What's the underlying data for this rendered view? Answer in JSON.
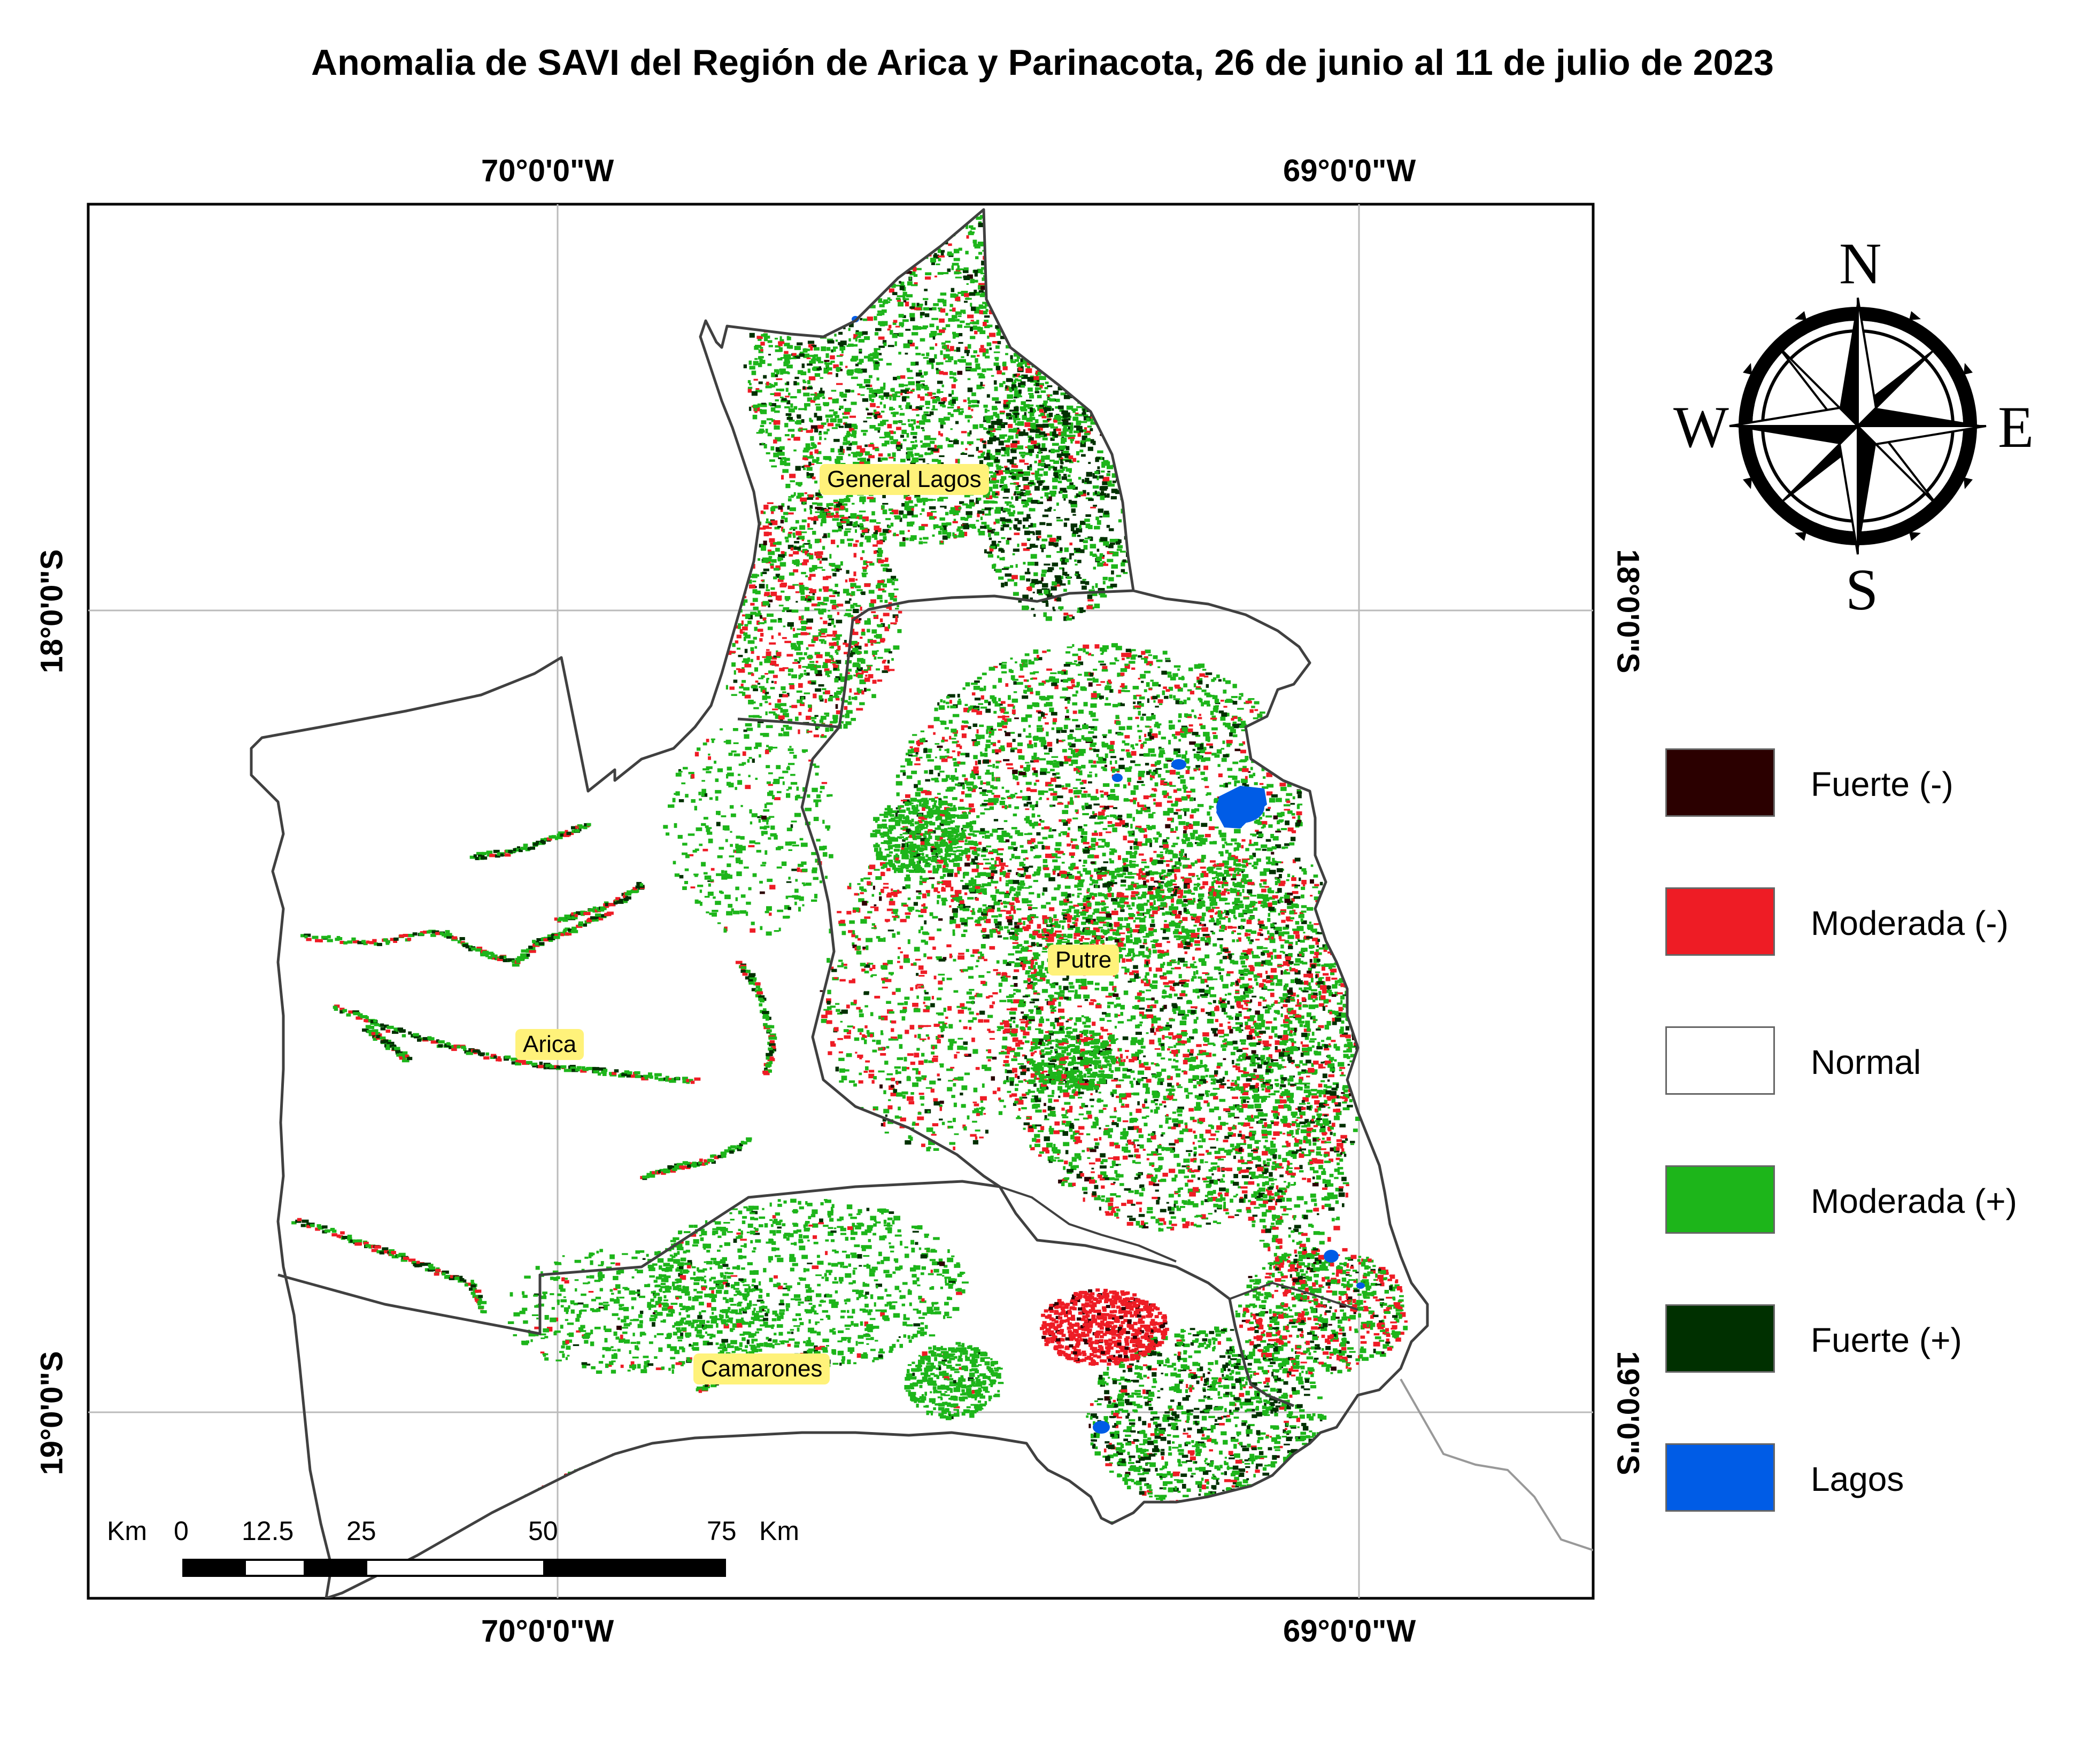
{
  "title": "Anomalia de SAVI del Región de Arica y Parinacota, 26 de junio al 11 de julio de 2023",
  "graticule": {
    "top": [
      "70°0'0\"W",
      "69°0'0\"W"
    ],
    "bottom": [
      "70°0'0\"W",
      "69°0'0\"W"
    ],
    "left": [
      "18°0'0\"S",
      "19°0'0\"S"
    ],
    "right": [
      "18°0'0\"S",
      "19°0'0\"S"
    ]
  },
  "compass": {
    "north": "N",
    "south": "S",
    "east": "E",
    "west": "W"
  },
  "legend": [
    {
      "label": "Fuerte (-)",
      "color": "#2b0000"
    },
    {
      "label": "Moderada (-)",
      "color": "#ee1c25"
    },
    {
      "label": "Normal",
      "color": "#ffffff"
    },
    {
      "label": "Moderada (+)",
      "color": "#1db51a"
    },
    {
      "label": "Fuerte (+)",
      "color": "#003000"
    },
    {
      "label": "Lagos",
      "color": "#005ce6"
    }
  ],
  "places": {
    "general_lagos": "General Lagos",
    "putre": "Putre",
    "arica": "Arica",
    "camarones": "Camarones"
  },
  "scale_bar": {
    "unit_left": "Km",
    "ticks": [
      "0",
      "12.5",
      "25",
      "50",
      "75"
    ],
    "unit_right": "Km"
  }
}
